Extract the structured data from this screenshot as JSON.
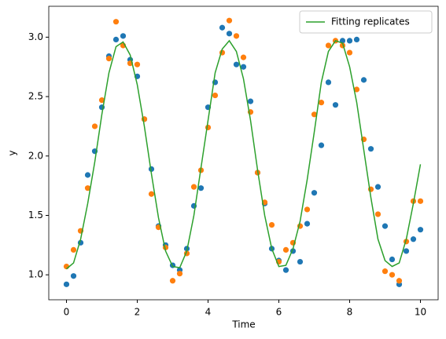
{
  "chart_data": {
    "type": "scatter",
    "xlabel": "Time",
    "ylabel": "y",
    "x": [
      0,
      0.2,
      0.4,
      0.6,
      0.8,
      1,
      1.2,
      1.4,
      1.6,
      1.8,
      2,
      2.2,
      2.4,
      2.6,
      2.8,
      3,
      3.2,
      3.4,
      3.6,
      3.8,
      4,
      4.2,
      4.4,
      4.6,
      4.8,
      5,
      5.2,
      5.4,
      5.6,
      5.8,
      6,
      6.2,
      6.4,
      6.6,
      6.8,
      7,
      7.2,
      7.4,
      7.6,
      7.8,
      8,
      8.2,
      8.4,
      8.6,
      8.8,
      9,
      9.2,
      9.4,
      9.6,
      9.8,
      10
    ],
    "series": [
      {
        "type": "scatter",
        "color": "#1f77b4",
        "values": [
          0.92,
          0.99,
          1.27,
          1.84,
          2.04,
          2.41,
          2.84,
          2.98,
          3.01,
          2.81,
          2.67,
          2.31,
          1.89,
          1.41,
          1.25,
          1.08,
          1.04,
          1.22,
          1.58,
          1.73,
          2.41,
          2.62,
          3.08,
          3.03,
          2.77,
          2.75,
          2.46,
          1.86,
          1.6,
          1.22,
          1.12,
          1.04,
          1.2,
          1.11,
          1.43,
          1.69,
          2.09,
          2.62,
          2.43,
          2.97,
          2.97,
          2.98,
          2.64,
          2.06,
          1.74,
          1.41,
          1.13,
          0.92,
          1.2,
          1.3,
          1.38
        ]
      },
      {
        "type": "scatter",
        "color": "#ff7f0e",
        "values": [
          1.07,
          1.21,
          1.37,
          1.73,
          2.25,
          2.47,
          2.82,
          3.13,
          2.93,
          2.78,
          2.77,
          2.31,
          1.68,
          1.4,
          1.23,
          0.95,
          1.01,
          1.18,
          1.74,
          1.88,
          2.24,
          2.51,
          2.87,
          3.14,
          3.01,
          2.83,
          2.37,
          1.86,
          1.61,
          1.42,
          1.11,
          1.21,
          1.27,
          1.41,
          1.55,
          2.35,
          2.45,
          2.93,
          2.97,
          2.93,
          2.87,
          2.56,
          2.14,
          1.72,
          1.51,
          1.03,
          1.0,
          0.95,
          1.28,
          1.62,
          1.62
        ]
      },
      {
        "type": "line",
        "name": "Fitting replicates",
        "color": "#2ca02c",
        "values": [
          1.05,
          1.1,
          1.3,
          1.6,
          1.95,
          2.35,
          2.7,
          2.92,
          2.96,
          2.85,
          2.6,
          2.25,
          1.85,
          1.48,
          1.2,
          1.07,
          1.06,
          1.2,
          1.5,
          1.9,
          2.3,
          2.7,
          2.9,
          2.97,
          2.88,
          2.65,
          2.3,
          1.88,
          1.5,
          1.22,
          1.07,
          1.08,
          1.22,
          1.45,
          1.8,
          2.2,
          2.62,
          2.88,
          2.97,
          2.95,
          2.75,
          2.45,
          2.05,
          1.65,
          1.3,
          1.12,
          1.07,
          1.1,
          1.3,
          1.6,
          1.93
        ]
      }
    ],
    "xlim": [
      -0.5,
      10.5
    ],
    "xticks": [
      0,
      2,
      4,
      6,
      8,
      10
    ],
    "ylim": [
      0.79,
      3.26
    ],
    "yticks": [
      {
        "value": 1,
        "label": "1.0"
      },
      1.5,
      {
        "value": 2,
        "label": "2.0"
      },
      2.5,
      {
        "value": 3,
        "label": "3.0"
      }
    ],
    "legend": "upper right"
  }
}
